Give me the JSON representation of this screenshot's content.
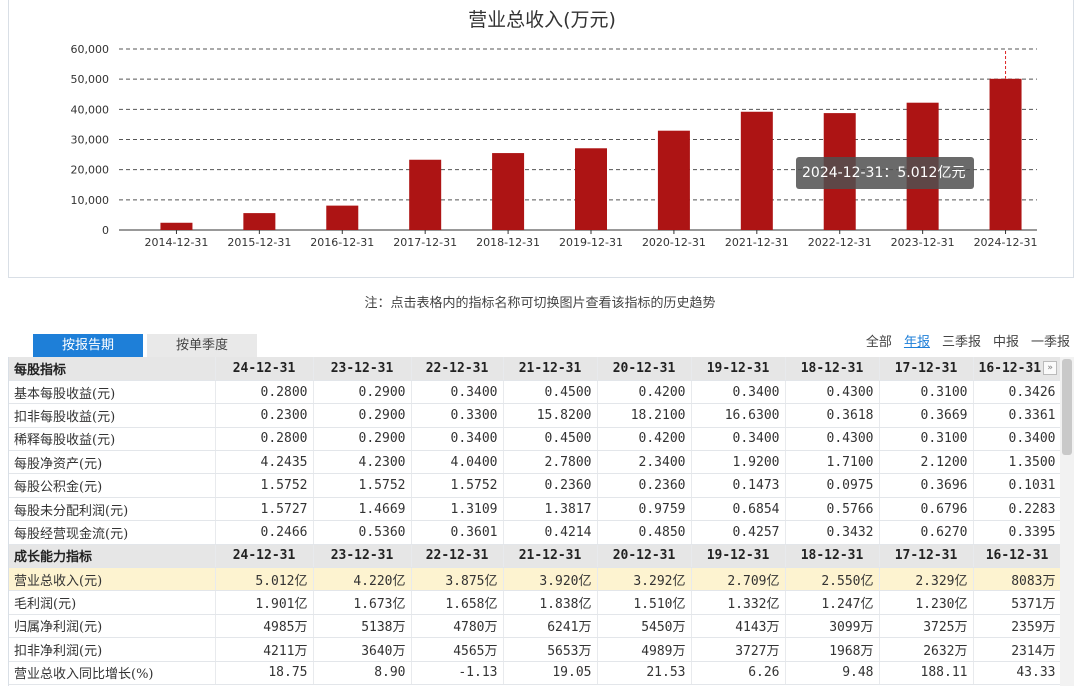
{
  "chart": {
    "title": "营业总收入(万元)",
    "tooltip": "2024-12-31：5.012亿元"
  },
  "chart_data": {
    "type": "bar",
    "title": "营业总收入(万元)",
    "categories": [
      "2014-12-31",
      "2015-12-31",
      "2016-12-31",
      "2017-12-31",
      "2018-12-31",
      "2019-12-31",
      "2020-12-31",
      "2021-12-31",
      "2022-12-31",
      "2023-12-31",
      "2024-12-31"
    ],
    "values": [
      2400,
      5600,
      8083,
      23290,
      25500,
      27090,
      32920,
      39200,
      38750,
      42200,
      50120
    ],
    "ylim": [
      0,
      60000
    ],
    "yticks": [
      "0",
      "10,000",
      "20,000",
      "30,000",
      "40,000",
      "50,000",
      "60,000"
    ],
    "grid": true,
    "color": "#ad1414"
  },
  "note": "注：点击表格内的指标名称可切换图片查看该指标的历史趋势",
  "tabs": {
    "report": "按报告期",
    "quarter": "按单季度"
  },
  "filters": [
    "全部",
    "年报",
    "三季报",
    "中报",
    "一季报"
  ],
  "filter_active": "年报",
  "table": {
    "sections": [
      {
        "title": "每股指标",
        "headers": [
          "24-12-31",
          "23-12-31",
          "22-12-31",
          "21-12-31",
          "20-12-31",
          "19-12-31",
          "18-12-31",
          "17-12-31",
          "16-12-31"
        ],
        "rows": [
          {
            "name": "基本每股收益(元)",
            "values": [
              "0.2800",
              "0.2900",
              "0.3400",
              "0.4500",
              "0.4200",
              "0.3400",
              "0.4300",
              "0.3100",
              "0.3426"
            ]
          },
          {
            "name": "扣非每股收益(元)",
            "values": [
              "0.2300",
              "0.2900",
              "0.3300",
              "15.8200",
              "18.2100",
              "16.6300",
              "0.3618",
              "0.3669",
              "0.3361"
            ]
          },
          {
            "name": "稀释每股收益(元)",
            "values": [
              "0.2800",
              "0.2900",
              "0.3400",
              "0.4500",
              "0.4200",
              "0.3400",
              "0.4300",
              "0.3100",
              "0.3400"
            ]
          },
          {
            "name": "每股净资产(元)",
            "values": [
              "4.2435",
              "4.2300",
              "4.0400",
              "2.7800",
              "2.3400",
              "1.9200",
              "1.7100",
              "2.1200",
              "1.3500"
            ]
          },
          {
            "name": "每股公积金(元)",
            "values": [
              "1.5752",
              "1.5752",
              "1.5752",
              "0.2360",
              "0.2360",
              "0.1473",
              "0.0975",
              "0.3696",
              "0.1031"
            ]
          },
          {
            "name": "每股未分配利润(元)",
            "values": [
              "1.5727",
              "1.4669",
              "1.3109",
              "1.3817",
              "0.9759",
              "0.6854",
              "0.5766",
              "0.6796",
              "0.2283"
            ]
          },
          {
            "name": "每股经营现金流(元)",
            "values": [
              "0.2466",
              "0.5360",
              "0.3601",
              "0.4214",
              "0.4850",
              "0.4257",
              "0.3432",
              "0.6270",
              "0.3395"
            ]
          }
        ]
      },
      {
        "title": "成长能力指标",
        "headers": [
          "24-12-31",
          "23-12-31",
          "22-12-31",
          "21-12-31",
          "20-12-31",
          "19-12-31",
          "18-12-31",
          "17-12-31",
          "16-12-31"
        ],
        "rows": [
          {
            "name": "营业总收入(元)",
            "values": [
              "5.012亿",
              "4.220亿",
              "3.875亿",
              "3.920亿",
              "3.292亿",
              "2.709亿",
              "2.550亿",
              "2.329亿",
              "8083万"
            ],
            "highlight": true
          },
          {
            "name": "毛利润(元)",
            "values": [
              "1.901亿",
              "1.673亿",
              "1.658亿",
              "1.838亿",
              "1.510亿",
              "1.332亿",
              "1.247亿",
              "1.230亿",
              "5371万"
            ]
          },
          {
            "name": "归属净利润(元)",
            "values": [
              "4985万",
              "5138万",
              "4780万",
              "6241万",
              "5450万",
              "4143万",
              "3099万",
              "3725万",
              "2359万"
            ]
          },
          {
            "name": "扣非净利润(元)",
            "values": [
              "4211万",
              "3640万",
              "4565万",
              "5653万",
              "4989万",
              "3727万",
              "1968万",
              "2632万",
              "2314万"
            ]
          },
          {
            "name": "营业总收入同比增长(%)",
            "values": [
              "18.75",
              "8.90",
              "-1.13",
              "19.05",
              "21.53",
              "6.26",
              "9.48",
              "188.11",
              "43.33"
            ]
          }
        ]
      }
    ]
  }
}
